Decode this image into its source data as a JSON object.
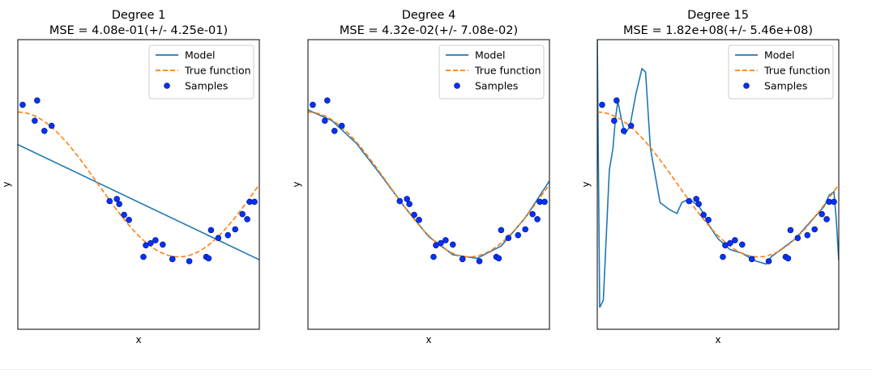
{
  "chart_data": [
    {
      "type": "line",
      "title": "Degree 1",
      "subtitle": "MSE = 4.08e-01(+/- 4.25e-01)",
      "xlabel": "x",
      "ylabel": "y",
      "xlim": [
        0,
        1
      ],
      "ylim": [
        -2,
        2
      ],
      "xticks": [],
      "yticks": [],
      "grid": false,
      "legend": {
        "placement": "top-right",
        "entries": [
          "Model",
          "True function",
          "Samples"
        ]
      },
      "series": [
        {
          "name": "Model",
          "style": "solid",
          "color": "#1f77b4",
          "kind": "polynomial-fit",
          "x": [
            0.0,
            1.0
          ],
          "y": [
            0.55,
            -1.04
          ]
        },
        {
          "name": "True function",
          "style": "dashed",
          "color": "#ff7f0e",
          "kind": "cos(1.5*pi*x)",
          "x": [
            0.0,
            0.1,
            0.2,
            0.3,
            0.4,
            0.5,
            0.6,
            0.7,
            0.8,
            0.9,
            1.0
          ],
          "y": [
            1.0,
            0.89,
            0.59,
            0.16,
            -0.31,
            -0.71,
            -0.95,
            -0.99,
            -0.81,
            -0.45,
            0.0
          ]
        }
      ],
      "samples": {
        "name": "Samples",
        "color": "#0033ff",
        "x": [
          0.02,
          0.07,
          0.08,
          0.11,
          0.14,
          0.38,
          0.41,
          0.42,
          0.44,
          0.46,
          0.52,
          0.53,
          0.55,
          0.57,
          0.6,
          0.64,
          0.64,
          0.71,
          0.78,
          0.79,
          0.8,
          0.83,
          0.87,
          0.9,
          0.93,
          0.95,
          0.96,
          0.98
        ],
        "y": [
          1.1,
          0.88,
          1.16,
          0.74,
          0.81,
          -0.23,
          -0.2,
          -0.27,
          -0.42,
          -0.49,
          -1.0,
          -0.84,
          -0.81,
          -0.77,
          -0.83,
          -1.03,
          -1.03,
          -1.06,
          -1.0,
          -1.02,
          -0.63,
          -0.74,
          -0.7,
          -0.62,
          -0.41,
          -0.48,
          -0.24,
          -0.24
        ]
      }
    },
    {
      "type": "line",
      "title": "Degree 4",
      "subtitle": "MSE = 4.32e-02(+/- 7.08e-02)",
      "xlabel": "x",
      "ylabel": "y",
      "xlim": [
        0,
        1
      ],
      "ylim": [
        -2,
        2
      ],
      "xticks": [],
      "yticks": [],
      "grid": false,
      "legend": {
        "placement": "top-right",
        "entries": [
          "Model",
          "True function",
          "Samples"
        ]
      },
      "series": [
        {
          "name": "Model",
          "style": "solid",
          "color": "#1f77b4",
          "kind": "polynomial-fit",
          "x": [
            0.0,
            0.1,
            0.2,
            0.3,
            0.4,
            0.5,
            0.6,
            0.7,
            0.8,
            0.9,
            1.0
          ],
          "y": [
            1.03,
            0.88,
            0.57,
            0.14,
            -0.31,
            -0.72,
            -0.97,
            -1.02,
            -0.85,
            -0.46,
            0.05
          ]
        },
        {
          "name": "True function",
          "style": "dashed",
          "color": "#ff7f0e",
          "kind": "cos(1.5*pi*x)",
          "x": [
            0.0,
            0.1,
            0.2,
            0.3,
            0.4,
            0.5,
            0.6,
            0.7,
            0.8,
            0.9,
            1.0
          ],
          "y": [
            1.0,
            0.89,
            0.59,
            0.16,
            -0.31,
            -0.71,
            -0.95,
            -0.99,
            -0.81,
            -0.45,
            0.0
          ]
        }
      ],
      "samples": {
        "name": "Samples",
        "color": "#0033ff",
        "x": [
          0.02,
          0.07,
          0.08,
          0.11,
          0.14,
          0.38,
          0.41,
          0.42,
          0.44,
          0.46,
          0.52,
          0.53,
          0.55,
          0.57,
          0.6,
          0.64,
          0.64,
          0.71,
          0.78,
          0.79,
          0.8,
          0.83,
          0.87,
          0.9,
          0.93,
          0.95,
          0.96,
          0.98
        ],
        "y": [
          1.1,
          0.88,
          1.16,
          0.74,
          0.81,
          -0.23,
          -0.2,
          -0.27,
          -0.42,
          -0.49,
          -1.0,
          -0.84,
          -0.81,
          -0.77,
          -0.83,
          -1.03,
          -1.03,
          -1.06,
          -1.0,
          -1.02,
          -0.63,
          -0.74,
          -0.7,
          -0.62,
          -0.41,
          -0.48,
          -0.24,
          -0.24
        ]
      }
    },
    {
      "type": "line",
      "title": "Degree 15",
      "subtitle": "MSE = 1.82e+08(+/- 5.46e+08)",
      "xlabel": "x",
      "ylabel": "y",
      "xlim": [
        0,
        1
      ],
      "ylim": [
        -2,
        2
      ],
      "xticks": [],
      "yticks": [],
      "grid": false,
      "legend": {
        "placement": "top-right",
        "entries": [
          "Model",
          "True function",
          "Samples"
        ]
      },
      "series": [
        {
          "name": "Model",
          "style": "solid",
          "color": "#1f77b4",
          "kind": "polynomial-fit (overfit)",
          "x": [
            0.0,
            0.01,
            0.025,
            0.05,
            0.065,
            0.075,
            0.085,
            0.1,
            0.115,
            0.135,
            0.16,
            0.185,
            0.2,
            0.22,
            0.26,
            0.3,
            0.33,
            0.35,
            0.38,
            0.4,
            0.42,
            0.44,
            0.46,
            0.5,
            0.55,
            0.6,
            0.65,
            0.7,
            0.72,
            0.78,
            0.82,
            0.86,
            0.9,
            0.94,
            0.96,
            0.98,
            0.99,
            1.0
          ],
          "y": [
            2.0,
            -1.7,
            -1.6,
            0.2,
            0.5,
            0.9,
            1.15,
            0.9,
            0.7,
            0.8,
            1.25,
            1.6,
            1.55,
            0.5,
            -0.25,
            -0.35,
            -0.4,
            -0.25,
            -0.2,
            -0.25,
            -0.3,
            -0.4,
            -0.55,
            -0.75,
            -0.9,
            -0.95,
            -1.05,
            -1.1,
            -1.0,
            -0.85,
            -0.75,
            -0.6,
            -0.45,
            -0.3,
            -0.15,
            -0.1,
            -0.5,
            -1.05
          ]
        },
        {
          "name": "True function",
          "style": "dashed",
          "color": "#ff7f0e",
          "kind": "cos(1.5*pi*x)",
          "x": [
            0.0,
            0.1,
            0.2,
            0.3,
            0.4,
            0.5,
            0.6,
            0.7,
            0.8,
            0.9,
            1.0
          ],
          "y": [
            1.0,
            0.89,
            0.59,
            0.16,
            -0.31,
            -0.71,
            -0.95,
            -0.99,
            -0.81,
            -0.45,
            0.0
          ]
        }
      ],
      "samples": {
        "name": "Samples",
        "color": "#0033ff",
        "x": [
          0.02,
          0.07,
          0.08,
          0.11,
          0.14,
          0.38,
          0.41,
          0.42,
          0.44,
          0.46,
          0.52,
          0.53,
          0.55,
          0.57,
          0.6,
          0.64,
          0.64,
          0.71,
          0.78,
          0.79,
          0.8,
          0.83,
          0.87,
          0.9,
          0.93,
          0.95,
          0.96,
          0.98
        ],
        "y": [
          1.1,
          0.88,
          1.16,
          0.74,
          0.81,
          -0.23,
          -0.2,
          -0.27,
          -0.42,
          -0.49,
          -1.0,
          -0.84,
          -0.81,
          -0.77,
          -0.83,
          -1.03,
          -1.03,
          -1.06,
          -1.0,
          -1.02,
          -0.63,
          -0.74,
          -0.7,
          -0.62,
          -0.41,
          -0.48,
          -0.24,
          -0.24
        ]
      }
    }
  ]
}
